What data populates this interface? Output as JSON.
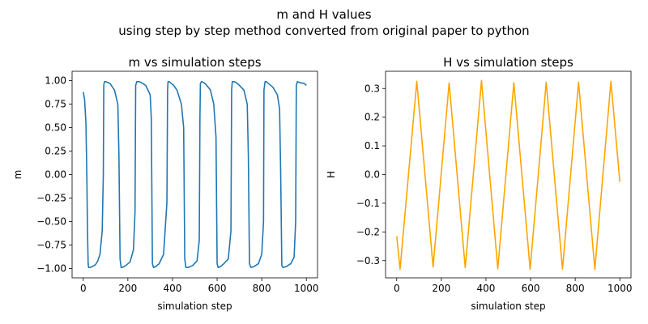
{
  "figure": {
    "suptitle_line1": "m and H values",
    "suptitle_line2": "using step by step method converted from original paper to python"
  },
  "chart_data": [
    {
      "type": "line",
      "title": "m vs simulation steps",
      "xlabel": "simulation step",
      "ylabel": "m",
      "xlim": [
        -50,
        1050
      ],
      "ylim": [
        -1.1,
        1.1
      ],
      "xticks": [
        0,
        200,
        400,
        600,
        800,
        1000
      ],
      "yticks": [
        -1.0,
        -0.75,
        -0.5,
        -0.25,
        0.0,
        0.25,
        0.5,
        0.75,
        1.0
      ],
      "ytick_labels": [
        "−1.00",
        "−0.75",
        "−0.50",
        "−0.25",
        "0.00",
        "0.25",
        "0.50",
        "0.75",
        "1.00"
      ],
      "grid": false,
      "series": [
        {
          "color": "#1f77b4",
          "x": [
            0,
            6,
            12,
            16,
            19,
            22,
            24,
            30,
            40,
            55,
            65,
            75,
            85,
            90,
            92,
            95,
            100,
            110,
            120,
            140,
            155,
            160,
            165,
            170,
            175,
            190,
            210,
            225,
            232,
            235,
            240,
            250,
            260,
            280,
            300,
            305,
            310,
            315,
            325,
            340,
            360,
            375,
            378,
            380,
            385,
            395,
            405,
            420,
            440,
            450,
            455,
            460,
            470,
            490,
            510,
            520,
            523,
            525,
            530,
            540,
            550,
            570,
            585,
            595,
            600,
            605,
            615,
            630,
            650,
            662,
            665,
            668,
            675,
            685,
            700,
            720,
            735,
            740,
            745,
            752,
            765,
            785,
            800,
            808,
            810,
            815,
            820,
            830,
            850,
            870,
            880,
            885,
            890,
            895,
            910,
            930,
            945,
            952,
            955,
            960,
            970,
            990,
            1000
          ],
          "y": [
            0.88,
            0.8,
            0.55,
            0.0,
            -0.6,
            -0.95,
            -0.99,
            -0.99,
            -0.98,
            -0.96,
            -0.92,
            -0.85,
            -0.6,
            0.0,
            0.95,
            0.99,
            0.99,
            0.98,
            0.97,
            0.9,
            0.75,
            0.2,
            -0.9,
            -0.99,
            -0.99,
            -0.97,
            -0.93,
            -0.8,
            -0.4,
            0.95,
            0.99,
            0.99,
            0.98,
            0.95,
            0.85,
            0.6,
            -0.95,
            -0.99,
            -0.98,
            -0.95,
            -0.85,
            -0.3,
            0.9,
            0.99,
            0.99,
            0.97,
            0.95,
            0.9,
            0.75,
            0.5,
            -0.9,
            -0.99,
            -0.99,
            -0.97,
            -0.92,
            -0.7,
            0.6,
            0.97,
            0.99,
            0.98,
            0.96,
            0.9,
            0.75,
            0.4,
            -0.95,
            -0.99,
            -0.98,
            -0.95,
            -0.9,
            -0.6,
            0.9,
            0.99,
            0.99,
            0.98,
            0.95,
            0.9,
            0.75,
            0.2,
            -0.95,
            -0.99,
            -0.98,
            -0.95,
            -0.85,
            -0.5,
            0.9,
            0.99,
            0.99,
            0.97,
            0.93,
            0.85,
            0.7,
            0.0,
            -0.97,
            -0.99,
            -0.98,
            -0.95,
            -0.88,
            -0.5,
            0.95,
            0.99,
            0.98,
            0.97,
            0.95
          ]
        }
      ]
    },
    {
      "type": "line",
      "title": "H vs simulation steps",
      "xlabel": "simulation step",
      "ylabel": "H",
      "xlim": [
        -50,
        1050
      ],
      "ylim": [
        -0.36,
        0.36
      ],
      "xticks": [
        0,
        200,
        400,
        600,
        800,
        1000
      ],
      "yticks": [
        -0.3,
        -0.2,
        -0.1,
        0.0,
        0.1,
        0.2,
        0.3
      ],
      "ytick_labels": [
        "−0.3",
        "−0.2",
        "−0.1",
        "0.0",
        "0.1",
        "0.2",
        "0.3"
      ],
      "grid": false,
      "series": [
        {
          "color": "#ffa500",
          "x": [
            0,
            15,
            90,
            163,
            235,
            307,
            380,
            453,
            525,
            598,
            670,
            743,
            815,
            888,
            960,
            1000
          ],
          "y": [
            -0.215,
            -0.33,
            0.325,
            -0.322,
            0.32,
            -0.325,
            0.328,
            -0.328,
            0.32,
            -0.33,
            0.322,
            -0.33,
            0.322,
            -0.33,
            0.325,
            -0.025
          ]
        }
      ]
    }
  ]
}
